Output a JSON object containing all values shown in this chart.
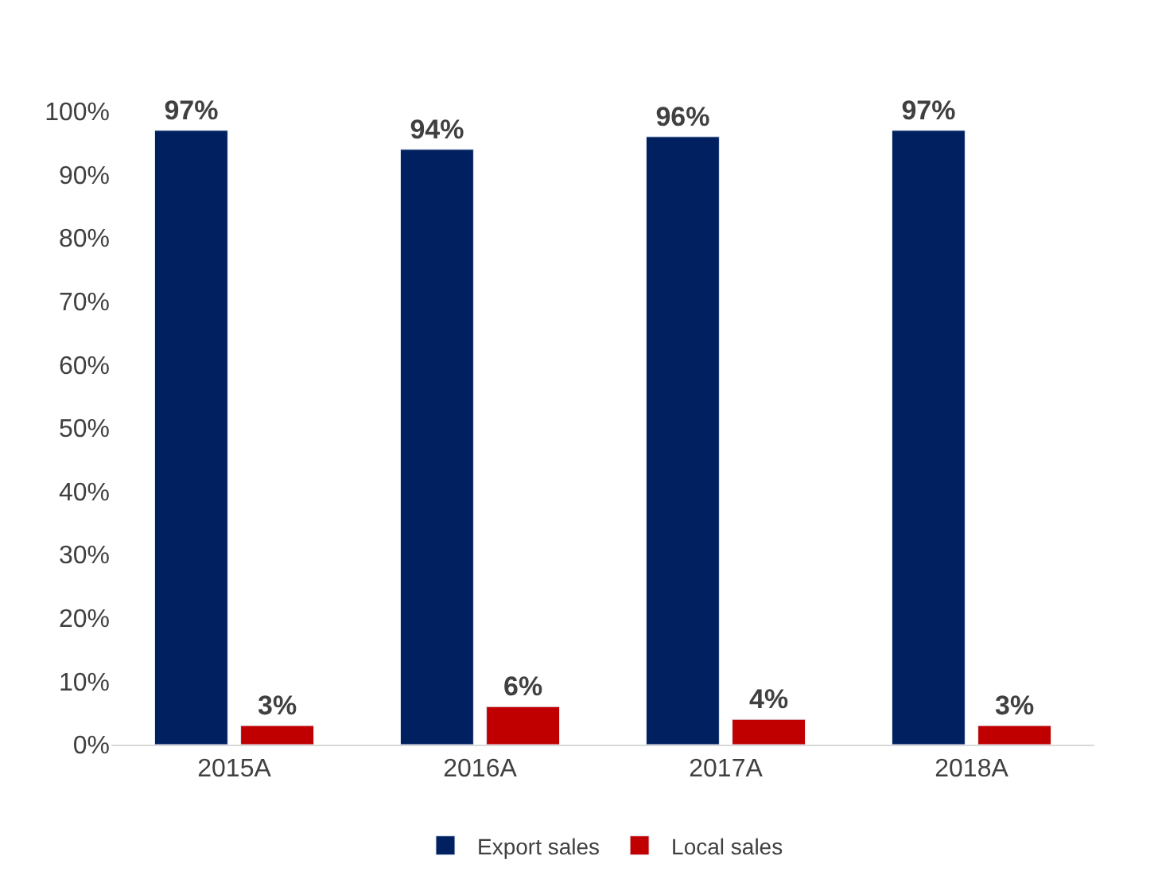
{
  "chart_data": {
    "type": "bar",
    "categories": [
      "2015A",
      "2016A",
      "2017A",
      "2018A"
    ],
    "series": [
      {
        "name": "Export sales",
        "color": "#002060",
        "values": [
          97,
          94,
          96,
          97
        ],
        "value_labels": [
          "97%",
          "94%",
          "96%",
          "97%"
        ]
      },
      {
        "name": "Local sales",
        "color": "#c00000",
        "values": [
          3,
          6,
          4,
          3
        ],
        "value_labels": [
          "3%",
          "6%",
          "4%",
          "3%"
        ]
      }
    ],
    "ylim": [
      0,
      100
    ],
    "yticks": [
      {
        "value": 0,
        "label": "0%"
      },
      {
        "value": 10,
        "label": "10%"
      },
      {
        "value": 20,
        "label": "20%"
      },
      {
        "value": 30,
        "label": "30%"
      },
      {
        "value": 40,
        "label": "40%"
      },
      {
        "value": 50,
        "label": "50%"
      },
      {
        "value": 60,
        "label": "60%"
      },
      {
        "value": 70,
        "label": "70%"
      },
      {
        "value": 80,
        "label": "80%"
      },
      {
        "value": 90,
        "label": "90%"
      },
      {
        "value": 100,
        "label": "100%"
      }
    ],
    "legend": "bottom"
  }
}
